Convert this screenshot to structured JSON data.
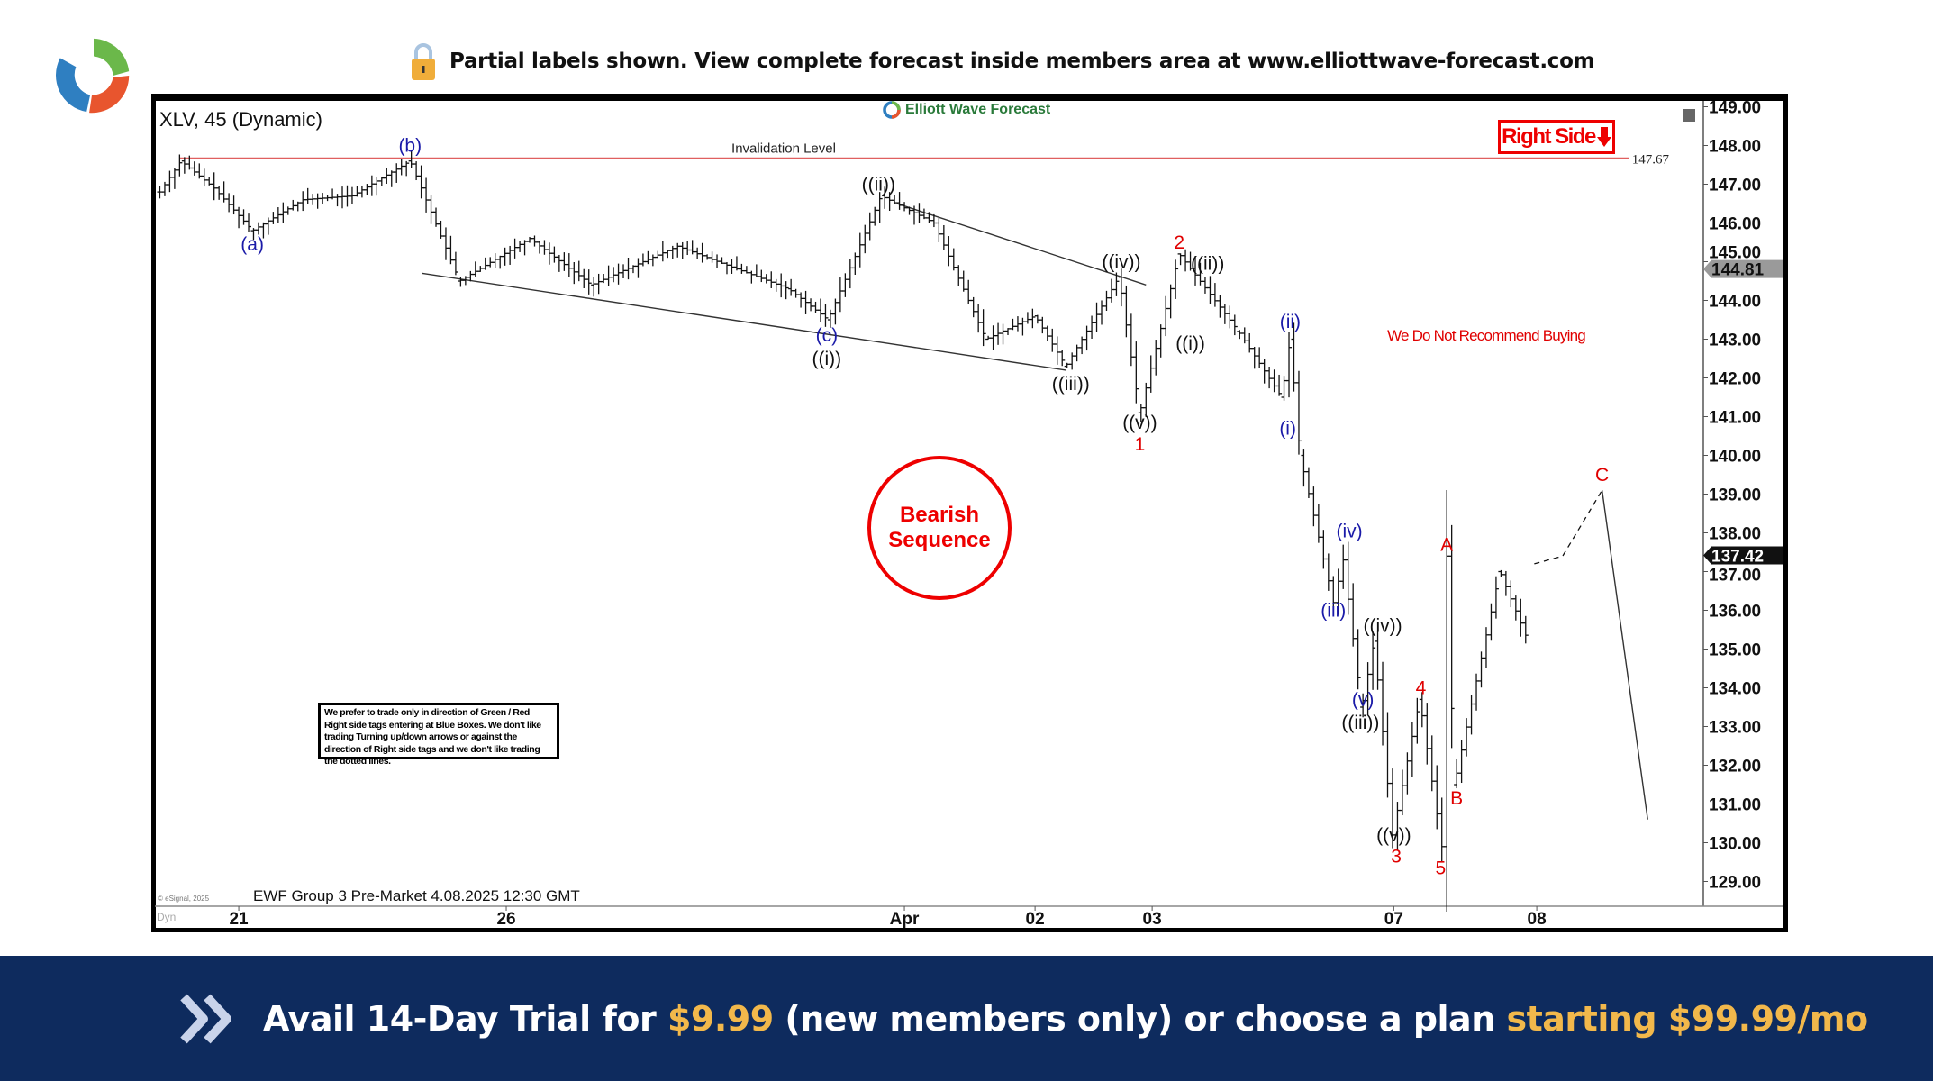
{
  "header": {
    "notice": "Partial labels shown. View complete forecast inside members area at www.elliottwave-forecast.com",
    "lock_icon": "lock-icon",
    "logo_icon": "ewf-swirl-logo"
  },
  "banner": {
    "part1": "Avail 14-Day Trial for ",
    "price1": "$9.99",
    "part2": " (new members only) or choose a plan ",
    "part3": "starting $99.99/mo",
    "icon": "double-chevron-right-icon"
  },
  "colors": {
    "red": "#e00000",
    "blue": "#1a1aa8",
    "navy": "#0e2b5e",
    "gold": "#f2b84b"
  },
  "chart_data": {
    "type": "line",
    "title": "XLV, 45 (Dynamic)",
    "brand": "Elliott Wave Forecast",
    "footer": "EWF Group 3 Pre-Market 4.08.2025 12:30 GMT",
    "copyright": "© eSignal, 2025",
    "dyn_label": "Dyn",
    "ylim": [
      128.6,
      149.1
    ],
    "yticks": [
      "149.00",
      "148.00",
      "147.00",
      "146.00",
      "145.00",
      "144.00",
      "143.00",
      "142.00",
      "141.00",
      "140.00",
      "139.00",
      "138.00",
      "137.00",
      "136.00",
      "135.00",
      "134.00",
      "133.00",
      "132.00",
      "131.00",
      "130.00",
      "129.00"
    ],
    "xticks": [
      {
        "label": "21",
        "bar": 17
      },
      {
        "label": "26",
        "bar": 71.25
      },
      {
        "label": "Apr",
        "bar": 152
      },
      {
        "label": "02",
        "bar": 178.5
      },
      {
        "label": "03",
        "bar": 202.25
      },
      {
        "label": "07",
        "bar": 251.25
      },
      {
        "label": "08",
        "bar": 280.25
      }
    ],
    "price_path": [
      [
        1,
        146.8
      ],
      [
        5.25,
        147.6
      ],
      [
        12,
        146.9
      ],
      [
        19.75,
        145.8
      ],
      [
        30,
        146.6
      ],
      [
        40,
        146.7
      ],
      [
        51.75,
        147.6
      ],
      [
        61.75,
        144.5
      ],
      [
        76,
        145.6
      ],
      [
        88.5,
        144.4
      ],
      [
        106,
        145.4
      ],
      [
        128.5,
        144.3
      ],
      [
        136.5,
        143.5
      ],
      [
        147.25,
        146.7
      ],
      [
        158,
        146.0
      ],
      [
        168.5,
        143.0
      ],
      [
        178.5,
        143.6
      ],
      [
        184.75,
        142.3
      ],
      [
        195.5,
        144.6
      ],
      [
        199.75,
        141.1
      ],
      [
        207.75,
        145.2
      ],
      [
        219.75,
        143.2
      ],
      [
        228.5,
        141.5
      ],
      [
        230.25,
        143.0
      ],
      [
        232.25,
        140.0
      ],
      [
        239,
        136.2
      ],
      [
        241,
        137.3
      ],
      [
        244.75,
        133.5
      ],
      [
        247.25,
        135.2
      ],
      [
        251,
        130.2
      ],
      [
        256.5,
        133.7
      ],
      [
        261,
        129.9
      ],
      [
        262,
        137.4
      ],
      [
        263.5,
        131.5
      ],
      [
        272.75,
        137.0
      ],
      [
        278.5,
        135.2
      ]
    ],
    "projection": [
      [
        279.75,
        137.2
      ],
      [
        285.5,
        137.4
      ],
      [
        293.5,
        139.1
      ],
      [
        302.75,
        130.6
      ]
    ],
    "trendlines": [
      [
        [
          54.25,
          144.7
        ],
        [
          184.75,
          142.2
        ]
      ],
      [
        [
          150.5,
          146.5
        ],
        [
          201,
          144.4
        ]
      ]
    ],
    "invalidation": {
      "label": "Invalidation Level",
      "value": 147.67,
      "value_label": "147.67",
      "from_bar": 5,
      "to_bar": 299
    },
    "price_tags": [
      {
        "label": "144.81",
        "value": 144.81,
        "style": "gray"
      },
      {
        "label": "137.42",
        "value": 137.42,
        "style": "black"
      }
    ],
    "wave_labels": [
      {
        "t": "(b)",
        "c": "blue",
        "bar": 51.75,
        "p": 148.0
      },
      {
        "t": "(a)",
        "c": "blue",
        "bar": 19.75,
        "p": 145.45
      },
      {
        "t": "(c)",
        "c": "blue",
        "bar": 136.25,
        "p": 143.1
      },
      {
        "t": "((i))",
        "c": "black",
        "bar": 136.25,
        "p": 142.5
      },
      {
        "t": "((ii))",
        "c": "black",
        "bar": 146.75,
        "p": 147.0
      },
      {
        "t": "((iii))",
        "c": "black",
        "bar": 185.75,
        "p": 141.85
      },
      {
        "t": "((iv))",
        "c": "black",
        "bar": 196,
        "p": 145.0
      },
      {
        "t": "((v))",
        "c": "black",
        "bar": 199.75,
        "p": 140.85
      },
      {
        "t": "1",
        "c": "red",
        "bar": 199.75,
        "p": 140.35
      },
      {
        "t": "2",
        "c": "red",
        "bar": 207.75,
        "p": 145.5
      },
      {
        "t": "((ii))",
        "c": "black",
        "bar": 213.5,
        "p": 144.95
      },
      {
        "t": "((i))",
        "c": "black",
        "bar": 210,
        "p": 142.9
      },
      {
        "t": "(ii)",
        "c": "blue",
        "bar": 230.25,
        "p": 143.45
      },
      {
        "t": "(i)",
        "c": "blue",
        "bar": 229.75,
        "p": 140.7
      },
      {
        "t": "(iv)",
        "c": "blue",
        "bar": 242.25,
        "p": 138.05
      },
      {
        "t": "(iii)",
        "c": "blue",
        "bar": 239,
        "p": 136.0
      },
      {
        "t": "((iv))",
        "c": "black",
        "bar": 249,
        "p": 135.6
      },
      {
        "t": "(v)",
        "c": "blue",
        "bar": 245,
        "p": 133.7
      },
      {
        "t": "((iii))",
        "c": "black",
        "bar": 244.5,
        "p": 133.1
      },
      {
        "t": "((v))",
        "c": "black",
        "bar": 251.25,
        "p": 130.2
      },
      {
        "t": "3",
        "c": "red",
        "bar": 251.75,
        "p": 129.65
      },
      {
        "t": "4",
        "c": "red",
        "bar": 256.75,
        "p": 134.0
      },
      {
        "t": "5",
        "c": "red",
        "bar": 260.75,
        "p": 129.35
      },
      {
        "t": "A",
        "c": "red",
        "bar": 262,
        "p": 137.7
      },
      {
        "t": "B",
        "c": "red",
        "bar": 264,
        "p": 131.15
      },
      {
        "t": "C",
        "c": "red",
        "bar": 293.5,
        "p": 139.5
      }
    ],
    "annotation": {
      "text": "We Do Not Recommend Buying",
      "bar": 270,
      "p": 143.1
    },
    "right_side": "Right Side",
    "right_side_icon": "down-arrow-icon",
    "bearish": [
      "Bearish",
      "Sequence"
    ],
    "note": "We prefer to trade only in direction of Green / Red Right side tags entering at Blue Boxes. We don't like trading Turning up/down arrows or against the direction of Right side tags and we don't like trading the dotted lines."
  }
}
